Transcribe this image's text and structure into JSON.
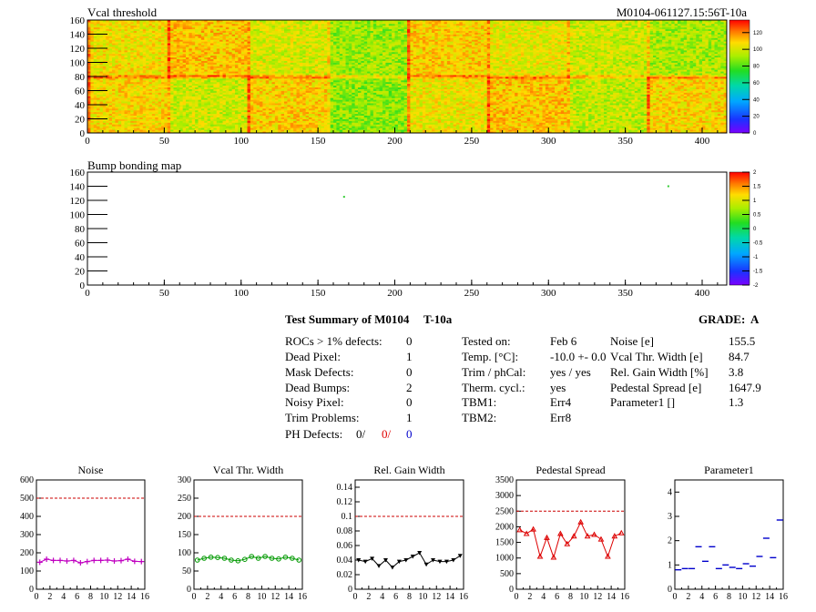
{
  "header": {
    "id_label": "M0104-061127.15:56T-10a"
  },
  "heatmaps": [
    {
      "title": "Vcal threshold",
      "x_ticks": [
        0,
        50,
        100,
        150,
        200,
        250,
        300,
        350,
        400
      ],
      "y_ticks": [
        0,
        20,
        40,
        60,
        80,
        100,
        120,
        140,
        160
      ],
      "xlim": [
        0,
        416
      ],
      "ylim": [
        0,
        160
      ],
      "colorbar_ticks": [
        0,
        20,
        40,
        60,
        80,
        100,
        120
      ],
      "colorbar_range": [
        0,
        135
      ]
    },
    {
      "title": "Bump bonding map",
      "x_ticks": [
        0,
        50,
        100,
        150,
        200,
        250,
        300,
        350,
        400
      ],
      "y_ticks": [
        0,
        20,
        40,
        60,
        80,
        100,
        120,
        140,
        160
      ],
      "xlim": [
        0,
        416
      ],
      "ylim": [
        0,
        160
      ],
      "colorbar_ticks": [
        -2,
        -1.5,
        -1,
        -0.5,
        0,
        0.5,
        1,
        1.5,
        2
      ],
      "colorbar_range": [
        -2,
        2
      ]
    }
  ],
  "summary": {
    "title": "Test Summary of M0104",
    "temp_tag": "T-10a",
    "grade_label": "GRADE:",
    "grade": "A",
    "defects": [
      {
        "label": "ROCs > 1% defects:",
        "value": "0"
      },
      {
        "label": "Dead Pixel:",
        "value": "1"
      },
      {
        "label": "Mask Defects:",
        "value": "0"
      },
      {
        "label": "Dead Bumps:",
        "value": "2"
      },
      {
        "label": "Noisy Pixel:",
        "value": "0"
      },
      {
        "label": "Trim Problems:",
        "value": "1"
      }
    ],
    "ph_label": "PH Defects:",
    "ph_values": [
      "0/",
      "0/",
      "0"
    ],
    "conditions": [
      {
        "label": "Tested on:",
        "value": "Feb 6"
      },
      {
        "label": "Temp. [°C]:",
        "value": "-10.0 +- 0.0"
      },
      {
        "label": "Trim / phCal:",
        "value": "yes / yes"
      },
      {
        "label": "Therm. cycl.:",
        "value": "yes"
      },
      {
        "label": "TBM1:",
        "value": "Err4"
      },
      {
        "label": "TBM2:",
        "value": "Err8"
      }
    ],
    "results": [
      {
        "label": "Noise [e]",
        "value": "155.5"
      },
      {
        "label": "Vcal Thr. Width [e]",
        "value": "84.7"
      },
      {
        "label": "Rel. Gain Width [%]",
        "value": "3.8"
      },
      {
        "label": "Pedestal Spread [e]",
        "value": "1647.9"
      },
      {
        "label": "Parameter1 []",
        "value": "1.3"
      }
    ]
  },
  "chart_data": [
    {
      "type": "heatmap",
      "title": "Vcal threshold",
      "xlim": [
        0,
        416
      ],
      "ylim": [
        0,
        160
      ],
      "zlim": [
        0,
        135
      ],
      "roc_grid": "8 columns x 2 rows of 52x80 pixel chips",
      "approx_mean_level": 95
    },
    {
      "type": "scatter",
      "title": "Bump bonding map",
      "xlim": [
        0,
        416
      ],
      "ylim": [
        0,
        160
      ],
      "points": [
        {
          "x": 167,
          "y": 125
        },
        {
          "x": 378,
          "y": 140
        }
      ]
    },
    {
      "type": "line",
      "title": "Noise",
      "x": [
        0,
        1,
        2,
        3,
        4,
        5,
        6,
        7,
        8,
        9,
        10,
        11,
        12,
        13,
        14,
        15
      ],
      "values": [
        148,
        165,
        158,
        158,
        155,
        158,
        145,
        152,
        158,
        158,
        160,
        155,
        157,
        165,
        153,
        152
      ],
      "ylim": [
        0,
        600
      ],
      "limit": 500,
      "color": "#c000c0",
      "marker": "plus",
      "y_ticks": [
        0,
        100,
        200,
        300,
        400,
        500,
        600
      ]
    },
    {
      "type": "line",
      "title": "Vcal Thr. Width",
      "x": [
        0,
        1,
        2,
        3,
        4,
        5,
        6,
        7,
        8,
        9,
        10,
        11,
        12,
        13,
        14,
        15
      ],
      "values": [
        80,
        85,
        88,
        87,
        85,
        80,
        78,
        82,
        90,
        85,
        90,
        85,
        83,
        88,
        85,
        80
      ],
      "ylim": [
        0,
        300
      ],
      "limit": 200,
      "color": "#009900",
      "marker": "circle",
      "y_ticks": [
        0,
        50,
        100,
        150,
        200,
        250,
        300
      ]
    },
    {
      "type": "line",
      "title": "Rel. Gain Width",
      "x": [
        0,
        1,
        2,
        3,
        4,
        5,
        6,
        7,
        8,
        9,
        10,
        11,
        12,
        13,
        14,
        15
      ],
      "values": [
        0.04,
        0.038,
        0.042,
        0.032,
        0.04,
        0.03,
        0.038,
        0.04,
        0.045,
        0.05,
        0.034,
        0.04,
        0.038,
        0.038,
        0.04,
        0.046
      ],
      "ylim": [
        0,
        0.15
      ],
      "limit": 0.1,
      "color": "#000000",
      "marker": "triangle-down",
      "y_ticks": [
        0,
        0.02,
        0.04,
        0.06,
        0.08,
        0.1,
        0.12,
        0.14
      ]
    },
    {
      "type": "line",
      "title": "Pedestal Spread",
      "x": [
        0,
        1,
        2,
        3,
        4,
        5,
        6,
        7,
        8,
        9,
        10,
        11,
        12,
        13,
        14,
        15
      ],
      "values": [
        1900,
        1780,
        1920,
        1050,
        1650,
        1020,
        1780,
        1450,
        1700,
        2150,
        1700,
        1750,
        1600,
        1050,
        1700,
        1800
      ],
      "ylim": [
        0,
        3500
      ],
      "limit": 2500,
      "color": "#dd0000",
      "marker": "triangle-up",
      "y_ticks": [
        0,
        500,
        1000,
        1500,
        2000,
        2500,
        3000,
        3500
      ]
    },
    {
      "type": "scatter",
      "title": "Parameter1",
      "x": [
        0,
        1,
        2,
        3,
        4,
        5,
        6,
        7,
        8,
        9,
        10,
        11,
        12,
        13,
        14,
        15
      ],
      "values": [
        0.8,
        0.85,
        0.85,
        1.75,
        1.15,
        1.75,
        0.85,
        1.0,
        0.9,
        0.85,
        1.05,
        0.95,
        1.35,
        2.1,
        1.3,
        2.85
      ],
      "ylim": [
        0,
        4.5
      ],
      "color": "#0000cc",
      "marker": "hbar",
      "y_ticks": [
        0,
        1,
        2,
        3,
        4
      ]
    }
  ]
}
